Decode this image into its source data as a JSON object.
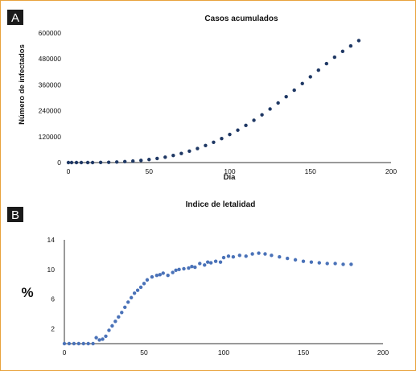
{
  "panels": {
    "a": {
      "label": "A"
    },
    "b": {
      "label": "B"
    }
  },
  "colors": {
    "frame": "#e8a33d",
    "panelA_points": "#1f3864",
    "panelB_points": "#4a72b8",
    "label_bg": "#1a1a1a"
  },
  "chart_data": [
    {
      "type": "scatter",
      "title": "Casos acumulados",
      "xlabel": "Día",
      "ylabel": "Número de infectados",
      "xlim": [
        0,
        200
      ],
      "ylim": [
        0,
        600000
      ],
      "xticks": [
        "0",
        "50",
        "100",
        "150",
        "200"
      ],
      "yticks": [
        "0",
        "120000",
        "240000",
        "360000",
        "480000",
        "600000"
      ],
      "grid": false,
      "x": [
        0,
        2,
        5,
        8,
        12,
        15,
        20,
        25,
        30,
        35,
        40,
        45,
        50,
        55,
        60,
        65,
        70,
        75,
        80,
        85,
        90,
        95,
        100,
        105,
        110,
        115,
        120,
        125,
        130,
        135,
        140,
        145,
        150,
        155,
        160,
        165,
        170,
        175,
        180
      ],
      "y": [
        0,
        0,
        0,
        0,
        0,
        0,
        500,
        1200,
        2500,
        4500,
        7000,
        10000,
        14000,
        19000,
        25000,
        33000,
        42000,
        53000,
        65000,
        79000,
        94000,
        111000,
        130000,
        150000,
        172000,
        196000,
        221000,
        248000,
        276000,
        305000,
        335000,
        366000,
        397000,
        428000,
        458000,
        488000,
        515000,
        540000,
        565000
      ]
    },
    {
      "type": "scatter",
      "title": "Indice de letalidad",
      "xlabel": "",
      "ylabel": "%",
      "xlim": [
        0,
        200
      ],
      "ylim": [
        0,
        14
      ],
      "xticks": [
        "0",
        "50",
        "100",
        "150",
        "200"
      ],
      "yticks": [
        "2",
        "6",
        "10",
        "14"
      ],
      "grid": false,
      "x": [
        0,
        3,
        6,
        9,
        12,
        15,
        18,
        20,
        22,
        24,
        26,
        28,
        30,
        32,
        34,
        36,
        38,
        40,
        42,
        44,
        46,
        48,
        50,
        52,
        55,
        58,
        60,
        62,
        65,
        68,
        70,
        72,
        75,
        78,
        80,
        82,
        85,
        88,
        90,
        92,
        95,
        98,
        100,
        103,
        106,
        110,
        114,
        118,
        122,
        126,
        130,
        135,
        140,
        145,
        150,
        155,
        160,
        165,
        170,
        175,
        180
      ],
      "y": [
        0,
        0,
        0,
        0,
        0,
        0,
        0,
        0.8,
        0.5,
        0.6,
        1.0,
        1.8,
        2.4,
        3.0,
        3.6,
        4.2,
        4.9,
        5.6,
        6.2,
        6.8,
        7.2,
        7.6,
        8.1,
        8.6,
        9.0,
        9.2,
        9.3,
        9.5,
        9.2,
        9.6,
        9.9,
        10.0,
        10.1,
        10.2,
        10.4,
        10.3,
        10.8,
        10.6,
        11.0,
        10.9,
        11.1,
        11.0,
        11.6,
        11.8,
        11.7,
        11.9,
        11.8,
        12.1,
        12.2,
        12.1,
        11.9,
        11.7,
        11.5,
        11.3,
        11.1,
        11.0,
        10.9,
        10.8,
        10.8,
        10.7,
        10.7
      ]
    }
  ]
}
